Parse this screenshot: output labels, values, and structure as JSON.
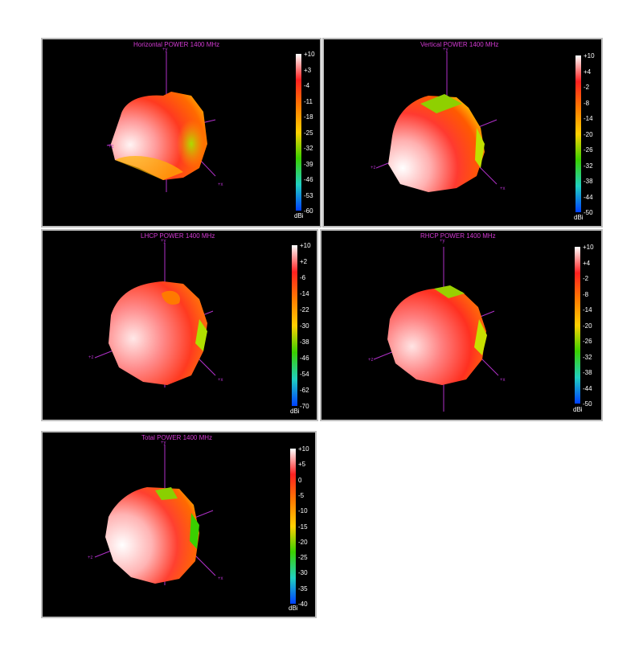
{
  "panels": [
    {
      "title": "Horizontal POWER 1400  MHz",
      "unit": "dBi",
      "scale_ticks": [
        "+10",
        "+3",
        "-4",
        "-11",
        "-18",
        "-25",
        "-32",
        "-39",
        "-46",
        "-53",
        "-60"
      ],
      "axes": {
        "y": "+y",
        "z": "+z",
        "x": "+x"
      }
    },
    {
      "title": "Vertical POWER 1400  MHz",
      "unit": "dBi",
      "scale_ticks": [
        "+10",
        "+4",
        "-2",
        "-8",
        "-14",
        "-20",
        "-26",
        "-32",
        "-38",
        "-44",
        "-50"
      ],
      "axes": {
        "y": "+y",
        "z": "+z",
        "x": "+x"
      }
    },
    {
      "title": "LHCP POWER 1400  MHz",
      "unit": "dBi",
      "scale_ticks": [
        "+10",
        "+2",
        "-6",
        "-14",
        "-22",
        "-30",
        "-38",
        "-46",
        "-54",
        "-62",
        "-70"
      ],
      "axes": {
        "y": "+y",
        "z": "+z",
        "x": "+x"
      }
    },
    {
      "title": "RHCP POWER 1400  MHz",
      "unit": "dBi",
      "scale_ticks": [
        "+10",
        "+4",
        "-2",
        "-8",
        "-14",
        "-20",
        "-26",
        "-32",
        "-38",
        "-44",
        "-50"
      ],
      "axes": {
        "y": "+y",
        "z": "+z",
        "x": "+x"
      }
    },
    {
      "title": "Total POWER 1400  MHz",
      "unit": "dBi",
      "scale_ticks": [
        "+10",
        "+5",
        "0",
        "-5",
        "-10",
        "-15",
        "-20",
        "-25",
        "-30",
        "-35",
        "-40"
      ],
      "axes": {
        "y": "+y",
        "z": "+z",
        "x": "+x"
      }
    }
  ],
  "colors": {
    "background": "#000000",
    "axis": "#b030c8",
    "title": "#d33ad3",
    "scale": [
      "#ffffff",
      "#ff2020",
      "#ff7a00",
      "#ffd000",
      "#3ad000",
      "#20d0c0",
      "#0040ff"
    ]
  }
}
